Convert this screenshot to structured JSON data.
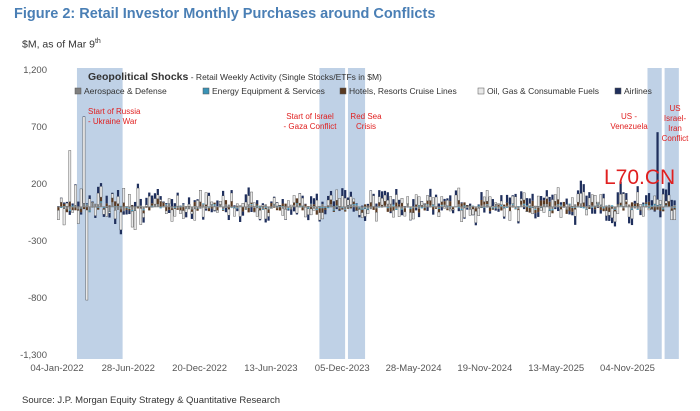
{
  "figure": {
    "title": "Figure 2: Retail Investor Monthly Purchases around Conflicts",
    "units": "$M, as of Mar 9",
    "units_sup": "th",
    "source": "Source: J.P. Morgan Equity Strategy & Quantitative Research",
    "watermark": "L70.CN"
  },
  "chart_data": {
    "type": "bar",
    "stacked": true,
    "title": "Geopolitical Shocks",
    "title_suffix": " - Retail Weekly Activity (Single Stocks/ETFs in $M)",
    "xlabel": "",
    "ylabel": "$M",
    "ylim": [
      -1300,
      1200
    ],
    "yticks": [
      1200,
      700,
      200,
      -300,
      -800,
      -1300
    ],
    "ytick_labels": [
      "1,200",
      "700",
      "200",
      "-300",
      "-800",
      "-1,300"
    ],
    "x_tick_labels": [
      "04-Jan-2022",
      "28-Jun-2022",
      "20-Dec-2022",
      "13-Jun-2023",
      "05-Dec-2023",
      "28-May-2024",
      "19-Nov-2024",
      "13-May-2025",
      "04-Nov-2025"
    ],
    "x_start": "2022-01-04",
    "x_end": "2026-03-03",
    "legend_position": "top",
    "series": [
      {
        "name": "Aerospace & Defense",
        "color": "#7f7f7f"
      },
      {
        "name": "Energy Equipment & Services",
        "color": "#3a93b6"
      },
      {
        "name": "Hotels, Resorts Cruise Lines",
        "color": "#5a3a22"
      },
      {
        "name": "Oil, Gas & Consumable Fuels",
        "color": "#e8e8e8"
      },
      {
        "name": "Airlines",
        "color": "#1f2f5c"
      }
    ],
    "highlighted_periods": [
      {
        "label": "Start of Russia - Ukraine War",
        "label_lines": [
          "Start of Russia",
          "- Ukraine War"
        ],
        "start": "2022-02-22",
        "end": "2022-06-14"
      },
      {
        "label": "Start of Israel - Gaza Conflict",
        "label_lines": [
          "Start of Israel",
          "- Gaza Conflict"
        ],
        "start": "2023-10-10",
        "end": "2023-12-12"
      },
      {
        "label": "Red Sea Crisis",
        "label_lines": [
          "Red Sea",
          "Crisis"
        ],
        "start": "2023-12-19",
        "end": "2024-01-30"
      },
      {
        "label": "US - Venezuela",
        "label_lines": [
          "US -",
          "Venezuela"
        ],
        "start": "2025-12-23",
        "end": "2026-01-27"
      },
      {
        "label": "US Israel-Iran Conflict",
        "label_lines": [
          "US",
          "Israel-",
          "Iran",
          "Conflict"
        ],
        "start": "2026-02-03",
        "end": "2026-03-10"
      }
    ],
    "notable_values": [
      {
        "date": "2022-03-08",
        "series": "Oil, Gas & Consumable Fuels",
        "value": 760
      },
      {
        "date": "2022-03-15",
        "series": "Oil, Gas & Consumable Fuels",
        "value": -790
      },
      {
        "date": "2022-02-01",
        "series": "Oil, Gas & Consumable Fuels",
        "value": 450
      },
      {
        "date": "2026-01-20",
        "series": "Airlines",
        "value": 590
      }
    ]
  }
}
